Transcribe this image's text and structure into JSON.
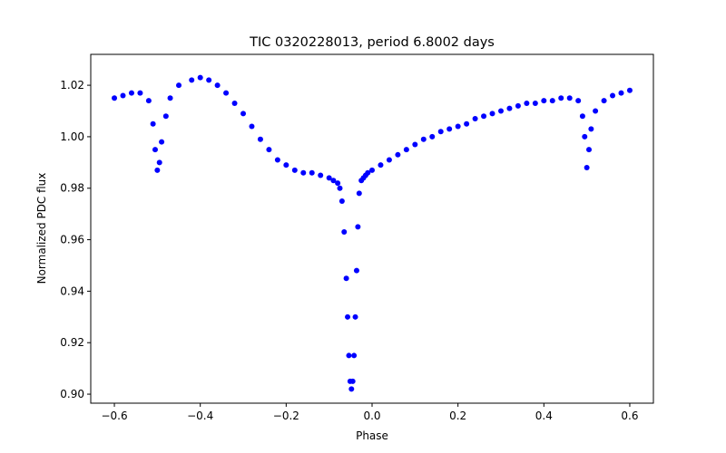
{
  "chart_data": {
    "type": "scatter",
    "title": "TIC 0320228013, period 6.8002 days",
    "xlabel": "Phase",
    "ylabel": "Normalized PDC flux",
    "xlim": [
      -0.655,
      0.655
    ],
    "ylim": [
      0.8965,
      1.032
    ],
    "xticks": [
      -0.6,
      -0.4,
      -0.2,
      0.0,
      0.2,
      0.4,
      0.6
    ],
    "xtick_labels": [
      "−0.6",
      "−0.4",
      "−0.2",
      "0.0",
      "0.2",
      "0.4",
      "0.6"
    ],
    "yticks": [
      0.9,
      0.92,
      0.94,
      0.96,
      0.98,
      1.0,
      1.02
    ],
    "ytick_labels": [
      "0.90",
      "0.92",
      "0.94",
      "0.96",
      "0.98",
      "1.00",
      "1.02"
    ],
    "grid": false,
    "series": [
      {
        "name": "flux",
        "color": "#0000ff",
        "x": [
          -0.6,
          -0.58,
          -0.56,
          -0.54,
          -0.52,
          -0.51,
          -0.505,
          -0.5,
          -0.495,
          -0.49,
          -0.48,
          -0.47,
          -0.45,
          -0.42,
          -0.4,
          -0.38,
          -0.36,
          -0.34,
          -0.32,
          -0.3,
          -0.28,
          -0.26,
          -0.24,
          -0.22,
          -0.2,
          -0.18,
          -0.16,
          -0.14,
          -0.12,
          -0.1,
          -0.09,
          -0.08,
          -0.075,
          -0.07,
          -0.065,
          -0.06,
          -0.057,
          -0.054,
          -0.051,
          -0.048,
          -0.045,
          -0.042,
          -0.039,
          -0.036,
          -0.033,
          -0.03,
          -0.025,
          -0.02,
          -0.015,
          -0.01,
          0.0,
          0.02,
          0.04,
          0.06,
          0.08,
          0.1,
          0.12,
          0.14,
          0.16,
          0.18,
          0.2,
          0.22,
          0.24,
          0.26,
          0.28,
          0.3,
          0.32,
          0.34,
          0.36,
          0.38,
          0.4,
          0.42,
          0.44,
          0.46,
          0.48,
          0.49,
          0.495,
          0.5,
          0.505,
          0.51,
          0.52,
          0.54,
          0.56,
          0.58,
          0.6
        ],
        "y": [
          1.015,
          1.016,
          1.017,
          1.017,
          1.014,
          1.005,
          0.995,
          0.987,
          0.99,
          0.998,
          1.008,
          1.015,
          1.02,
          1.022,
          1.023,
          1.022,
          1.02,
          1.017,
          1.013,
          1.009,
          1.004,
          0.999,
          0.995,
          0.991,
          0.989,
          0.987,
          0.986,
          0.986,
          0.985,
          0.984,
          0.983,
          0.982,
          0.98,
          0.975,
          0.963,
          0.945,
          0.93,
          0.915,
          0.905,
          0.902,
          0.905,
          0.915,
          0.93,
          0.948,
          0.965,
          0.978,
          0.983,
          0.984,
          0.985,
          0.986,
          0.987,
          0.989,
          0.991,
          0.993,
          0.995,
          0.997,
          0.999,
          1.0,
          1.002,
          1.003,
          1.004,
          1.005,
          1.007,
          1.008,
          1.009,
          1.01,
          1.011,
          1.012,
          1.013,
          1.013,
          1.014,
          1.014,
          1.015,
          1.015,
          1.014,
          1.008,
          1.0,
          0.988,
          0.995,
          1.003,
          1.01,
          1.014,
          1.016,
          1.017,
          1.018
        ]
      }
    ]
  }
}
